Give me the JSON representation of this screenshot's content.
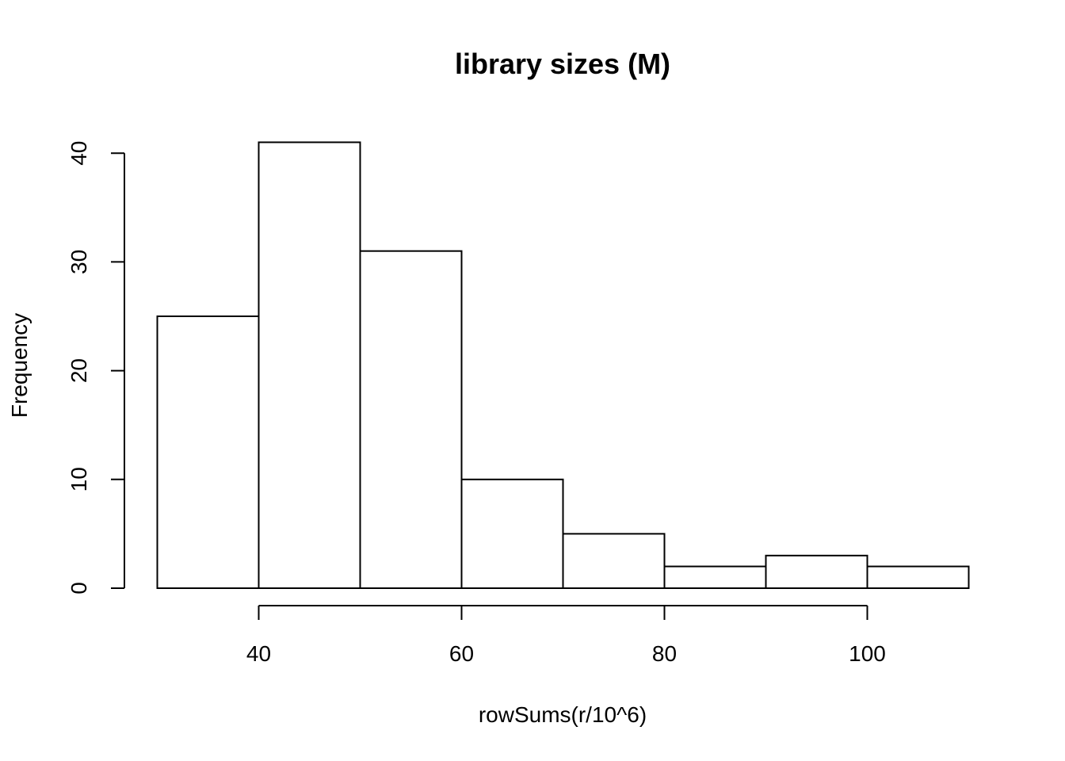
{
  "chart_data": {
    "type": "bar",
    "title": "library sizes (M)",
    "xlabel": "rowSums(r/10^6)",
    "ylabel": "Frequency",
    "bins": [
      {
        "start": 30,
        "end": 40,
        "count": 25
      },
      {
        "start": 40,
        "end": 50,
        "count": 41
      },
      {
        "start": 50,
        "end": 60,
        "count": 31
      },
      {
        "start": 60,
        "end": 70,
        "count": 10
      },
      {
        "start": 70,
        "end": 80,
        "count": 5
      },
      {
        "start": 80,
        "end": 90,
        "count": 2
      },
      {
        "start": 90,
        "end": 100,
        "count": 3
      },
      {
        "start": 100,
        "end": 110,
        "count": 2
      }
    ],
    "xticks": [
      40,
      60,
      80,
      100
    ],
    "xtick_labels": [
      "40",
      "60",
      "80",
      "100"
    ],
    "yticks": [
      0,
      10,
      20,
      30,
      40
    ],
    "ytick_labels": [
      "0",
      "10",
      "20",
      "30",
      "40"
    ],
    "xlim": [
      30,
      110
    ],
    "ylim": [
      0,
      41
    ],
    "grid": false,
    "bar_fill": "#ffffff",
    "bar_stroke": "#000000"
  }
}
